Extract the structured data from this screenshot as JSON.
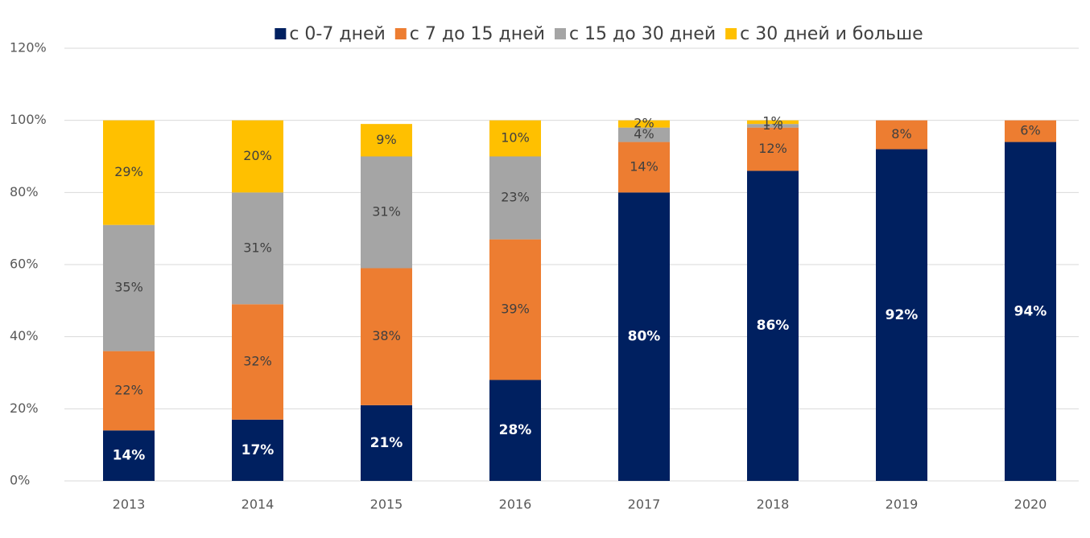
{
  "chart_data": {
    "type": "stacked_bar",
    "categories": [
      "2013",
      "2014",
      "2015",
      "2016",
      "2017",
      "2018",
      "2019",
      "2020"
    ],
    "series": [
      {
        "name": "с 0-7 дней",
        "color": "#002060",
        "values": [
          14,
          17,
          21,
          28,
          80,
          86,
          92,
          94
        ],
        "value_labels": [
          "14%",
          "17%",
          "21%",
          "28%",
          "80%",
          "86%",
          "92%",
          "94%"
        ]
      },
      {
        "name": "с 7 до 15 дней",
        "color": "#ed7d31",
        "values": [
          22,
          32,
          38,
          39,
          14,
          12,
          8,
          6
        ],
        "value_labels": [
          "22%",
          "32%",
          "38%",
          "39%",
          "14%",
          "12%",
          "8%",
          "6%"
        ]
      },
      {
        "name": "с 15 до 30 дней",
        "color": "#a5a5a5",
        "values": [
          35,
          31,
          31,
          23,
          4,
          1,
          null,
          null
        ],
        "value_labels": [
          "35%",
          "31%",
          "31%",
          "23%",
          "4%",
          "1%",
          null,
          null
        ]
      },
      {
        "name": "с 30 дней и больше",
        "color": "#ffc000",
        "values": [
          29,
          20,
          9,
          10,
          2,
          1,
          null,
          null
        ],
        "value_labels": [
          "29%",
          "20%",
          "9%",
          "10%",
          "2%",
          "1%",
          null,
          null
        ]
      }
    ],
    "ylim": [
      0,
      120
    ],
    "yticks": [
      {
        "value": 0,
        "label": "0%"
      },
      {
        "value": 20,
        "label": "20%"
      },
      {
        "value": 40,
        "label": "40%"
      },
      {
        "value": 60,
        "label": "60%"
      },
      {
        "value": 80,
        "label": "80%"
      },
      {
        "value": 100,
        "label": "100%"
      },
      {
        "value": 120,
        "label": "120%"
      }
    ],
    "grid": true,
    "legend": "top"
  }
}
